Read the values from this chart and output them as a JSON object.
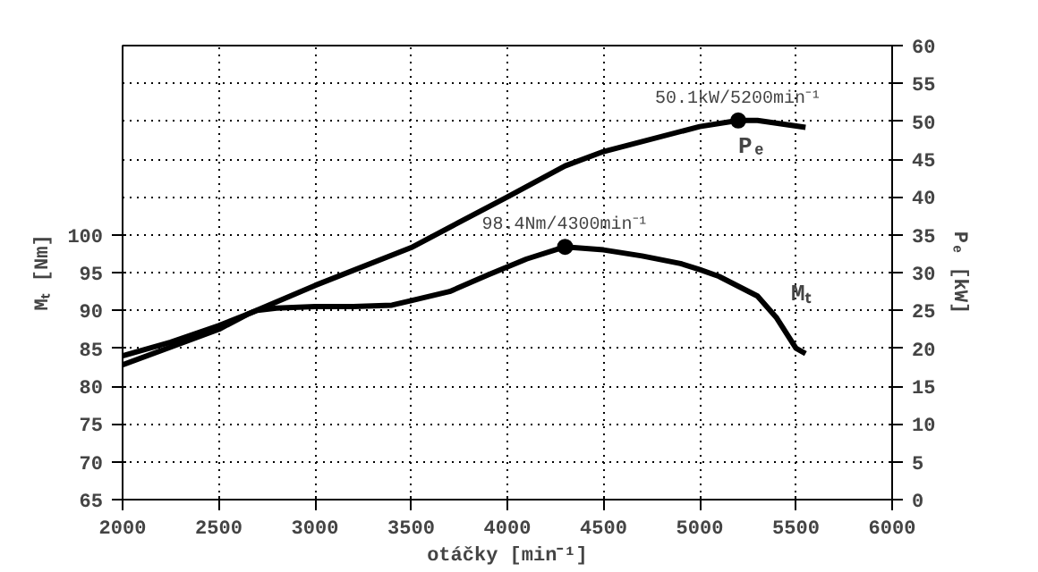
{
  "chart_data": {
    "type": "line",
    "xlabel": "otáčky [min⁻¹]",
    "ylabel": "Mₜ [Nm]",
    "y2label": "Pₑ [kW]",
    "xlim": [
      2000,
      6000
    ],
    "xticks": [
      2000,
      2500,
      3000,
      3500,
      4000,
      4500,
      5000,
      5500,
      6000
    ],
    "ylim": [
      65,
      125
    ],
    "yticks": [
      65,
      70,
      75,
      80,
      85,
      90,
      95,
      100
    ],
    "y2lim": [
      0,
      60
    ],
    "y2ticks": [
      0,
      5,
      10,
      15,
      20,
      25,
      30,
      35,
      40,
      45,
      50,
      55,
      60
    ],
    "grid": true,
    "line_style": "solid",
    "series": [
      {
        "name": "Mₜ",
        "color": "#000000",
        "x": [
          2000,
          2250,
          2500,
          2700,
          2800,
          3000,
          3200,
          3400,
          3500,
          3700,
          3900,
          4100,
          4300,
          4500,
          4700,
          4900,
          5000,
          5100,
          5300,
          5400,
          5500,
          5550
        ],
        "values": [
          84,
          85.8,
          88,
          90,
          90.3,
          90.5,
          90.5,
          90.7,
          91.3,
          92.5,
          94.7,
          96.8,
          98.4,
          98.0,
          97.2,
          96.2,
          95.4,
          94.5,
          91.9,
          89,
          85,
          84.3
        ]
      },
      {
        "name": "Pₑ",
        "color": "#000000",
        "axis": "y2",
        "x": [
          2000,
          2500,
          2650,
          3000,
          3500,
          4000,
          4300,
          4500,
          5000,
          5200,
          5300,
          5550
        ],
        "values": [
          17.8,
          22.5,
          24.5,
          28.3,
          33.3,
          40,
          44.1,
          46,
          49.3,
          50.1,
          50.1,
          49.2
        ]
      }
    ],
    "annotations": [
      "98.4Nm/4300min⁻¹",
      "50.1kW/5200min⁻¹"
    ]
  }
}
